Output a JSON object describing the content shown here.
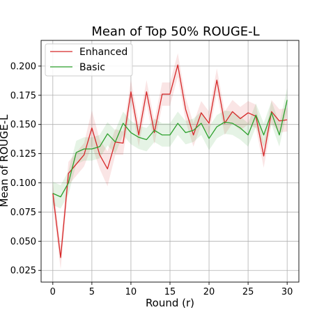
{
  "chart_data": {
    "type": "line",
    "title": "Mean of Top 50% ROUGE-L",
    "xlabel": "Round (r)",
    "ylabel": "Mean of ROUGE-L",
    "xlim": [
      -1.5,
      31.5
    ],
    "ylim": [
      0.015,
      0.222
    ],
    "xticks": [
      0,
      5,
      10,
      15,
      20,
      25,
      30
    ],
    "yticks": [
      0.025,
      0.05,
      0.075,
      0.1,
      0.125,
      0.15,
      0.175,
      0.2
    ],
    "ytick_labels": [
      "0.025",
      "0.050",
      "0.075",
      "0.100",
      "0.125",
      "0.150",
      "0.175",
      "0.200"
    ],
    "grid": true,
    "legend_position": "upper-left",
    "x": [
      0,
      1,
      2,
      3,
      4,
      5,
      6,
      7,
      8,
      9,
      10,
      11,
      12,
      13,
      14,
      15,
      16,
      17,
      18,
      19,
      20,
      21,
      22,
      23,
      24,
      25,
      26,
      27,
      28,
      29,
      30
    ],
    "series": [
      {
        "name": "Enhanced",
        "color": "#d62728",
        "values": [
          0.091,
          0.036,
          0.108,
          0.116,
          0.124,
          0.147,
          0.124,
          0.112,
          0.135,
          0.134,
          0.178,
          0.141,
          0.178,
          0.143,
          0.176,
          0.176,
          0.201,
          0.163,
          0.141,
          0.16,
          0.151,
          0.188,
          0.151,
          0.161,
          0.155,
          0.16,
          0.157,
          0.123,
          0.161,
          0.153,
          0.154
        ],
        "band_low": [
          0.082,
          0.026,
          0.098,
          0.106,
          0.114,
          0.132,
          0.112,
          0.097,
          0.124,
          0.124,
          0.168,
          0.131,
          0.168,
          0.133,
          0.166,
          0.166,
          0.191,
          0.153,
          0.131,
          0.15,
          0.141,
          0.178,
          0.141,
          0.151,
          0.145,
          0.15,
          0.147,
          0.113,
          0.151,
          0.143,
          0.144
        ],
        "band_high": [
          0.1,
          0.046,
          0.118,
          0.126,
          0.134,
          0.162,
          0.137,
          0.127,
          0.146,
          0.144,
          0.188,
          0.151,
          0.188,
          0.153,
          0.186,
          0.186,
          0.211,
          0.173,
          0.151,
          0.17,
          0.161,
          0.198,
          0.161,
          0.171,
          0.165,
          0.17,
          0.167,
          0.133,
          0.171,
          0.163,
          0.164
        ]
      },
      {
        "name": "Basic",
        "color": "#2ca02c",
        "values": [
          0.091,
          0.088,
          0.1,
          0.126,
          0.129,
          0.129,
          0.131,
          0.142,
          0.135,
          0.151,
          0.143,
          0.139,
          0.137,
          0.145,
          0.141,
          0.141,
          0.151,
          0.143,
          0.145,
          0.151,
          0.138,
          0.148,
          0.152,
          0.151,
          0.147,
          0.141,
          0.158,
          0.141,
          0.16,
          0.141,
          0.171
        ],
        "band_low": [
          0.081,
          0.078,
          0.09,
          0.116,
          0.119,
          0.119,
          0.121,
          0.132,
          0.125,
          0.141,
          0.133,
          0.129,
          0.127,
          0.135,
          0.131,
          0.131,
          0.141,
          0.133,
          0.135,
          0.141,
          0.128,
          0.138,
          0.142,
          0.141,
          0.137,
          0.131,
          0.148,
          0.131,
          0.15,
          0.131,
          0.161
        ],
        "band_high": [
          0.101,
          0.098,
          0.11,
          0.136,
          0.139,
          0.139,
          0.141,
          0.152,
          0.145,
          0.161,
          0.153,
          0.149,
          0.147,
          0.155,
          0.151,
          0.151,
          0.161,
          0.153,
          0.155,
          0.161,
          0.148,
          0.158,
          0.162,
          0.161,
          0.157,
          0.151,
          0.168,
          0.151,
          0.17,
          0.151,
          0.181
        ]
      }
    ]
  }
}
